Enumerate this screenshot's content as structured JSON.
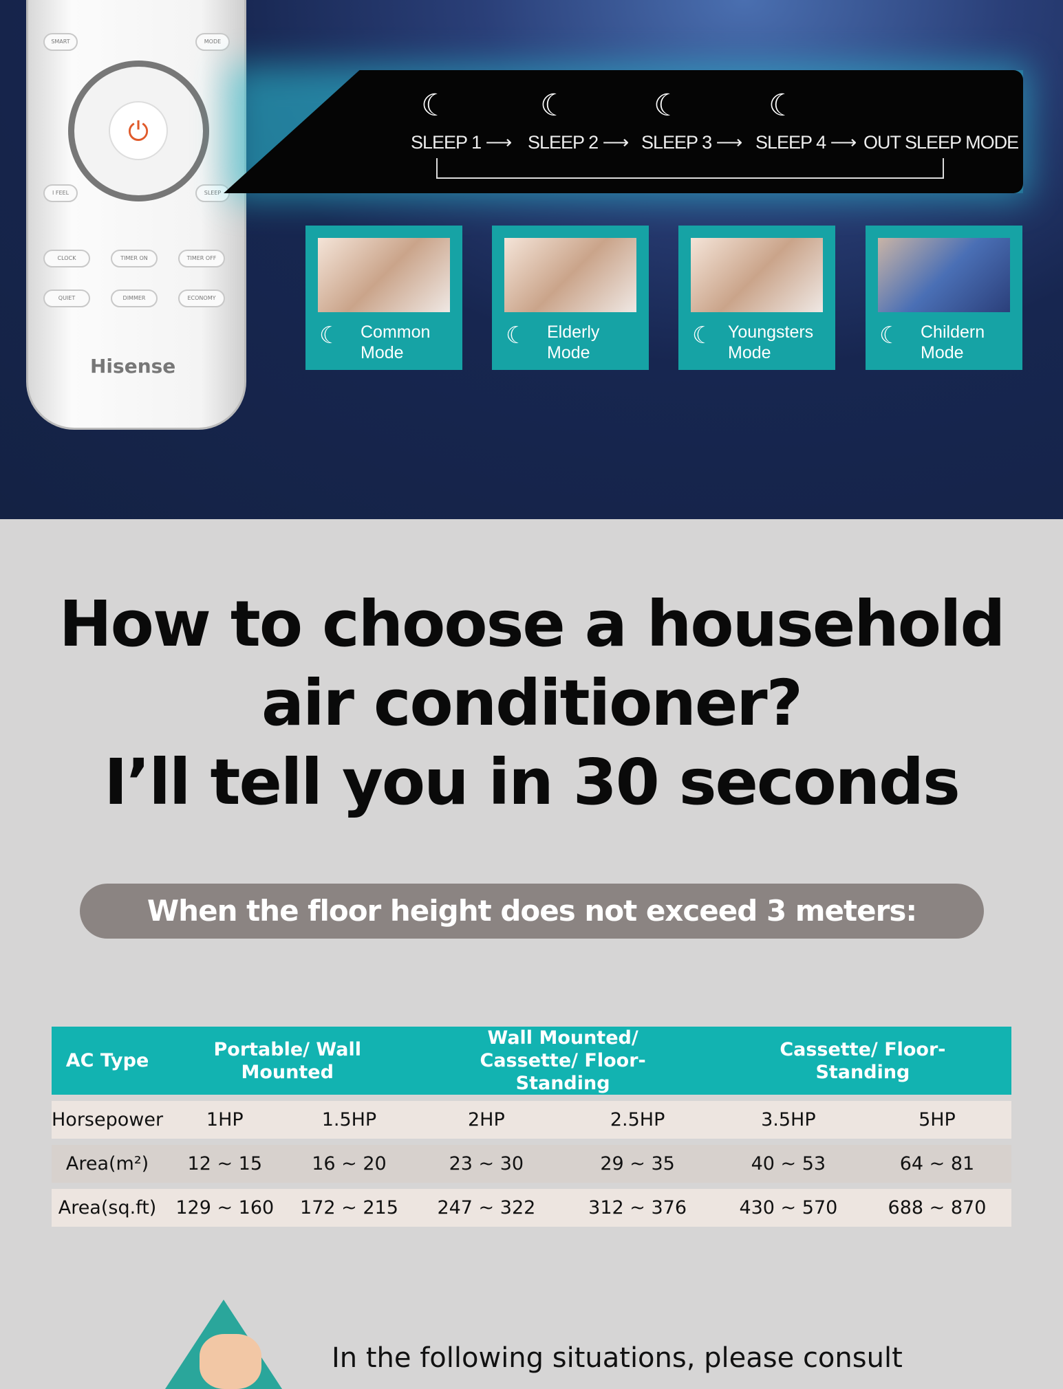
{
  "remote": {
    "brand": "Hisense",
    "buttons": [
      "SMART",
      "MODE",
      "I FEEL",
      "SLEEP",
      "CLOCK",
      "TIMER ON",
      "TIMER OFF",
      "QUIET",
      "DIMMER",
      "ECONOMY"
    ]
  },
  "sleep_flow": {
    "steps": [
      "SLEEP 1 ⟶",
      "SLEEP 2 ⟶",
      "SLEEP 3 ⟶",
      "SLEEP 4 ⟶",
      "OUT SLEEP MODE"
    ]
  },
  "modes": [
    {
      "line1": "Common",
      "line2": "Mode"
    },
    {
      "line1": "Elderly",
      "line2": "Mode"
    },
    {
      "line1": "Youngsters",
      "line2": "Mode"
    },
    {
      "line1": "Childern",
      "line2": "Mode"
    }
  ],
  "heading": {
    "line1": "How to choose a household",
    "line2": "air conditioner?",
    "line3": "I’ll tell you in 30 seconds"
  },
  "condition": "When the floor height does not exceed 3 meters:",
  "table": {
    "header": [
      "AC Type",
      "Portable/ Wall Mounted",
      "Wall Mounted/ Cassette/ Floor-Standing",
      "Cassette/ Floor-Standing"
    ],
    "rows": [
      [
        "Horsepower",
        "1HP",
        "1.5HP",
        "2HP",
        "2.5HP",
        "3.5HP",
        "5HP"
      ],
      [
        "Area(m²)",
        "12 ~ 15",
        "16 ~ 20",
        "23 ~ 30",
        "29 ~ 35",
        "40 ~ 53",
        "64 ~ 81"
      ],
      [
        "Area(sq.ft)",
        "129 ~ 160",
        "172 ~ 215",
        "247 ~ 322",
        "312 ~ 376",
        "430 ~ 570",
        "688 ~ 870"
      ]
    ]
  },
  "footer_text": "In the following situations, please consult",
  "colors": {
    "teal": "#12b3b1",
    "navy": "#142244",
    "pill": "#8b8482"
  }
}
